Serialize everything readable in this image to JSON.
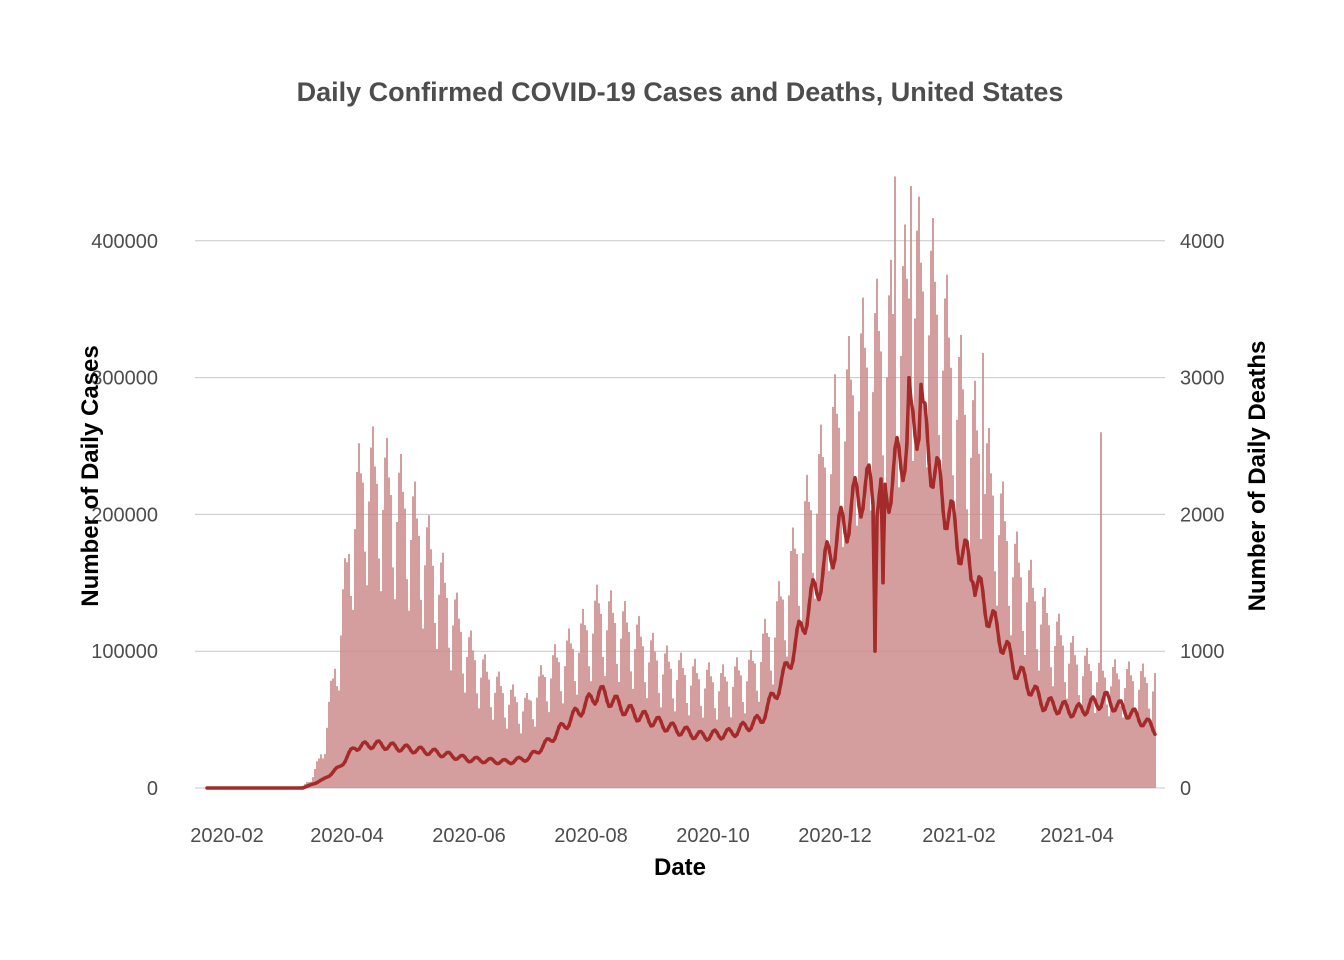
{
  "chart_data": {
    "type": "bar+line",
    "title": "Daily Confirmed COVID-19 Cases and Deaths, United States",
    "xlabel": "Date",
    "ylabel_left": "Number of Daily Cases",
    "ylabel_right": "Number of Daily Deaths",
    "x_ticks": [
      "2020-02",
      "2020-04",
      "2020-06",
      "2020-08",
      "2020-10",
      "2020-12",
      "2021-02",
      "2021-04"
    ],
    "y_ticks_left": [
      "0",
      "100000",
      "200000",
      "300000",
      "400000"
    ],
    "y_ticks_right": [
      "0",
      "1000",
      "2000",
      "3000",
      "4000"
    ],
    "ylim_left": [
      0,
      470000
    ],
    "ylim_right": [
      0,
      4700
    ],
    "xlim": [
      "2020-01-16",
      "2021-05-15"
    ],
    "grid": "horizontal",
    "colors": {
      "cases_bar": "#c98686",
      "deaths_line": "#a52a2a"
    },
    "series": [
      {
        "kind": "bar",
        "axis": "left",
        "x_start": "2020-01-22",
        "x_end": "2021-05-10",
        "weekly_pattern": [
          1.0,
          0.95,
          0.72,
          0.62,
          0.88,
          1.05,
          1.12
        ],
        "anchors": [
          [
            "2020-01-22",
            0
          ],
          [
            "2020-03-01",
            0
          ],
          [
            "2020-03-10",
            1500
          ],
          [
            "2020-03-15",
            9000
          ],
          [
            "2020-03-20",
            30000
          ],
          [
            "2020-03-25",
            80000
          ],
          [
            "2020-03-31",
            150000
          ],
          [
            "2020-04-04",
            210000
          ],
          [
            "2020-04-10",
            240000
          ],
          [
            "2020-04-20",
            230000
          ],
          [
            "2020-04-30",
            215000
          ],
          [
            "2020-05-10",
            185000
          ],
          [
            "2020-05-20",
            150000
          ],
          [
            "2020-06-01",
            105000
          ],
          [
            "2020-06-10",
            85000
          ],
          [
            "2020-06-20",
            70000
          ],
          [
            "2020-06-30",
            62000
          ],
          [
            "2020-07-10",
            88000
          ],
          [
            "2020-07-25",
            110000
          ],
          [
            "2020-08-05",
            135000
          ],
          [
            "2020-08-20",
            120000
          ],
          [
            "2020-09-05",
            95000
          ],
          [
            "2020-09-20",
            85000
          ],
          [
            "2020-10-05",
            80000
          ],
          [
            "2020-10-20",
            90000
          ],
          [
            "2020-11-01",
            125000
          ],
          [
            "2020-11-15",
            195000
          ],
          [
            "2020-12-01",
            270000
          ],
          [
            "2020-12-15",
            320000
          ],
          [
            "2021-01-01",
            350000
          ],
          [
            "2021-01-10",
            390000
          ],
          [
            "2021-01-20",
            370000
          ],
          [
            "2021-02-01",
            300000
          ],
          [
            "2021-02-15",
            240000
          ],
          [
            "2021-03-01",
            170000
          ],
          [
            "2021-03-20",
            120000
          ],
          [
            "2021-04-01",
            95000
          ],
          [
            "2021-04-15",
            85000
          ],
          [
            "2021-05-10",
            80000
          ]
        ],
        "spikes": [
          [
            "2020-12-31",
            447000
          ],
          [
            "2021-01-08",
            440000
          ],
          [
            "2021-02-13",
            318000
          ],
          [
            "2021-04-13",
            260000
          ]
        ]
      },
      {
        "kind": "line",
        "axis": "right",
        "x_start": "2020-01-22",
        "x_end": "2021-05-10",
        "anchors": [
          [
            "2020-01-22",
            0
          ],
          [
            "2020-03-10",
            0
          ],
          [
            "2020-03-20",
            60
          ],
          [
            "2020-03-28",
            150
          ],
          [
            "2020-04-05",
            300
          ],
          [
            "2020-04-15",
            320
          ],
          [
            "2020-04-30",
            290
          ],
          [
            "2020-05-15",
            260
          ],
          [
            "2020-06-01",
            210
          ],
          [
            "2020-06-20",
            190
          ],
          [
            "2020-07-01",
            220
          ],
          [
            "2020-07-10",
            330
          ],
          [
            "2020-07-25",
            550
          ],
          [
            "2020-08-05",
            700
          ],
          [
            "2020-08-20",
            560
          ],
          [
            "2020-09-10",
            440
          ],
          [
            "2020-09-25",
            380
          ],
          [
            "2020-10-10",
            400
          ],
          [
            "2020-10-25",
            500
          ],
          [
            "2020-11-05",
            800
          ],
          [
            "2020-11-20",
            1400
          ],
          [
            "2020-12-01",
            1800
          ],
          [
            "2020-12-15",
            2200
          ],
          [
            "2020-12-25",
            2100
          ],
          [
            "2021-01-05",
            2500
          ],
          [
            "2021-01-12",
            2750
          ],
          [
            "2021-01-22",
            2200
          ],
          [
            "2021-02-01",
            1800
          ],
          [
            "2021-02-15",
            1300
          ],
          [
            "2021-03-01",
            880
          ],
          [
            "2021-03-15",
            620
          ],
          [
            "2021-04-01",
            560
          ],
          [
            "2021-04-15",
            650
          ],
          [
            "2021-05-01",
            520
          ],
          [
            "2021-05-10",
            430
          ]
        ],
        "spikes": [
          [
            "2020-12-21",
            1000
          ],
          [
            "2020-12-25",
            1500
          ],
          [
            "2021-01-07",
            3000
          ],
          [
            "2021-01-13",
            2950
          ],
          [
            "2021-02-08",
            1500
          ]
        ]
      }
    ]
  }
}
